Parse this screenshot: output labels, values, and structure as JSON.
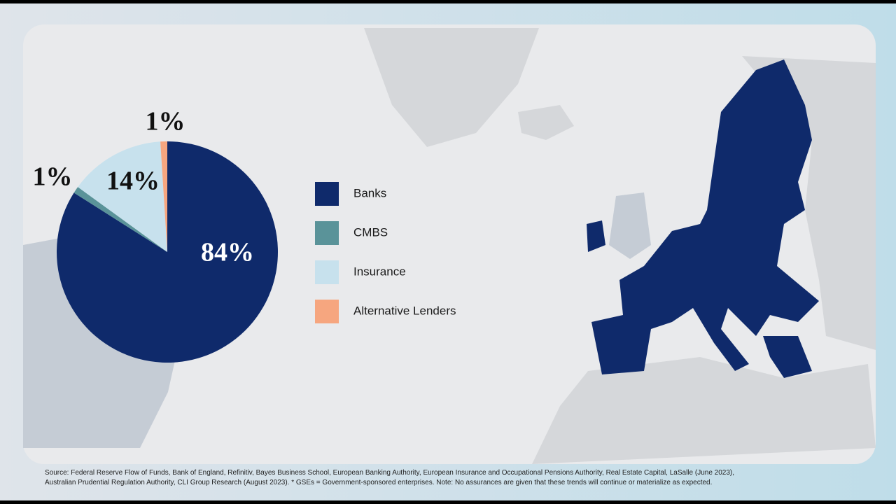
{
  "chart_data": {
    "type": "pie",
    "categories": [
      "Banks",
      "CMBS",
      "Insurance",
      "Alternative Lenders"
    ],
    "values": [
      84,
      1,
      14,
      1
    ],
    "value_labels": [
      "84%",
      "1%",
      "14%",
      "1%"
    ],
    "colors": [
      "#0f2a6b",
      "#5a9399",
      "#c7e1ed",
      "#f6a67f"
    ]
  },
  "source": [
    "Source: Federal Reserve Flow of Funds, Bank of England, Refinitiv, Bayes Business School, European Banking Authority, European Insurance and Occupational Pensions Authority, Real Estate Capital, LaSalle (June 2023),",
    "Australian Prudential Regulation Authority, CLI Group Research (August 2023). * GSEs = Government-sponsored enterprises. Note: No assurances are given that these trends will continue or materialize as expected."
  ]
}
